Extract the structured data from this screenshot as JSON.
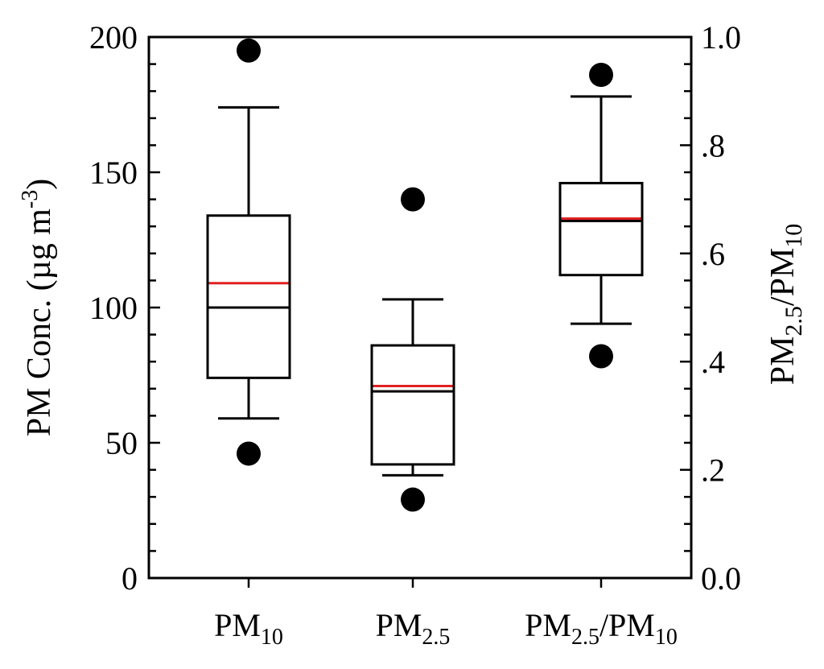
{
  "chart_data": {
    "type": "box",
    "left_axis": {
      "label": {
        "main": "PM Conc. (µg m",
        "sup": "-3",
        "close": ")"
      },
      "ylim": [
        0,
        200
      ],
      "major_ticks": [
        0,
        50,
        100,
        150,
        200
      ],
      "tick_labels": [
        "0",
        "50",
        "100",
        "150",
        "200"
      ],
      "minor_step": 10
    },
    "right_axis": {
      "label": {
        "parts": [
          {
            "text": "PM",
            "sub": false
          },
          {
            "text": "2.5",
            "sub": true
          },
          {
            "text": "/PM",
            "sub": false
          },
          {
            "text": "10",
            "sub": true
          }
        ]
      },
      "ylim": [
        0,
        1.0
      ],
      "major_ticks": [
        0,
        0.2,
        0.4,
        0.6,
        0.8,
        1.0
      ],
      "tick_labels": [
        "0.0",
        ".2",
        ".4",
        ".6",
        ".8",
        "1.0"
      ],
      "minor_step": 0.05
    },
    "grid": false,
    "boxes": [
      {
        "category": {
          "parts": [
            {
              "text": "PM",
              "sub": false
            },
            {
              "text": "10",
              "sub": true
            }
          ]
        },
        "axis": "left",
        "whisker_low": 59,
        "q1": 74,
        "median": 100,
        "q3": 134,
        "whisker_high": 174,
        "mean": 109,
        "outliers": [
          46,
          195
        ]
      },
      {
        "category": {
          "parts": [
            {
              "text": "PM",
              "sub": false
            },
            {
              "text": "2.5",
              "sub": true
            }
          ]
        },
        "axis": "left",
        "whisker_low": 38,
        "q1": 42,
        "median": 69,
        "q3": 86,
        "whisker_high": 103,
        "mean": 71,
        "outliers": [
          29,
          140
        ]
      },
      {
        "category": {
          "parts": [
            {
              "text": "PM",
              "sub": false
            },
            {
              "text": "2.5",
              "sub": true
            },
            {
              "text": "/PM",
              "sub": false
            },
            {
              "text": "10",
              "sub": true
            }
          ]
        },
        "axis": "right",
        "whisker_low": 0.47,
        "q1": 0.56,
        "median": 0.66,
        "q3": 0.73,
        "whisker_high": 0.89,
        "mean": 0.66,
        "outliers": [
          0.41,
          0.93
        ]
      }
    ],
    "colors": {
      "box": "#000000",
      "median": "#000000",
      "mean": "#e02020",
      "outlier": "#000000"
    }
  }
}
